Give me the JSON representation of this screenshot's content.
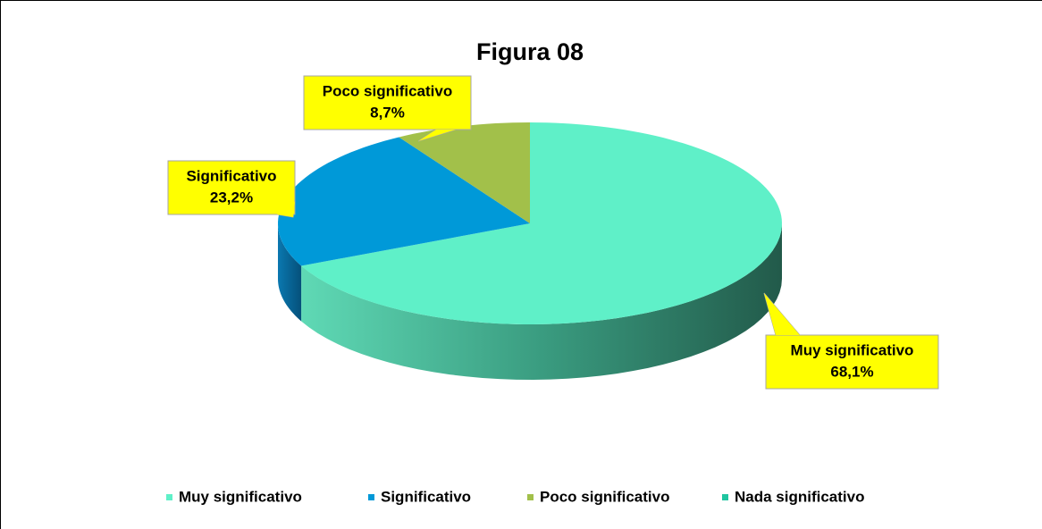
{
  "chart_data": {
    "type": "pie",
    "title": "Figura 08",
    "categories": [
      "Muy significativo",
      "Significativo",
      "Poco significativo",
      "Nada significativo"
    ],
    "values": [
      68.1,
      23.2,
      8.7,
      0
    ],
    "value_labels": [
      "68,1%",
      "23,2%",
      "8,7%",
      null
    ],
    "colors": [
      "#5ff0c8",
      "#0099d8",
      "#a2c04a",
      "#1fc5a0"
    ],
    "legend": "bottom"
  }
}
